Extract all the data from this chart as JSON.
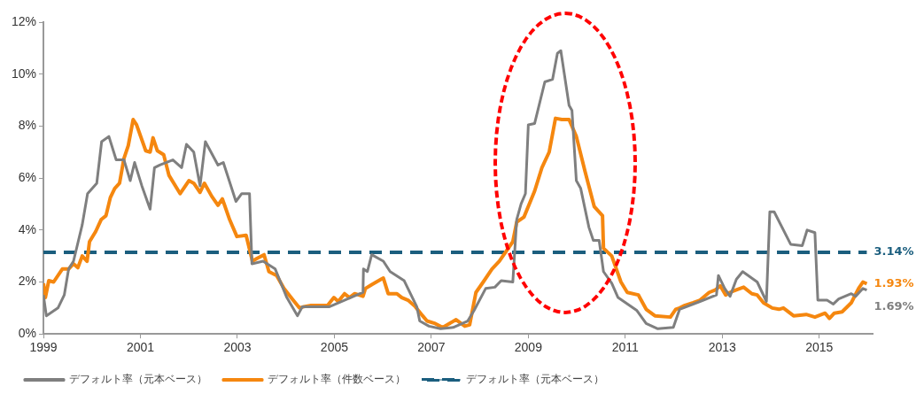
{
  "chart_data": {
    "type": "line",
    "legend": "bottom",
    "line_style": "solid",
    "marker": "none",
    "xlim": [
      1999,
      2016.1
    ],
    "xticks": [
      1999,
      2001,
      2003,
      2005,
      2007,
      2009,
      2011,
      2013,
      2015
    ],
    "ylim": [
      0,
      12
    ],
    "yticks": [
      {
        "value": 0,
        "label": "0%"
      },
      {
        "value": 2,
        "label": "2%"
      },
      {
        "value": 4,
        "label": "4%"
      },
      {
        "value": 6,
        "label": "6%"
      },
      {
        "value": 8,
        "label": "8%"
      },
      {
        "value": 10,
        "label": "10%"
      },
      {
        "value": 12,
        "label": "12%"
      }
    ],
    "series": [
      {
        "name": "デフォルト率（元本ベース）",
        "color": "#7f7f7f",
        "x": [
          1999.0,
          1999.06,
          1999.3,
          1999.43,
          1999.52,
          1999.62,
          1999.8,
          1999.91,
          2000.1,
          2000.2,
          2000.35,
          2000.5,
          2000.66,
          2000.79,
          2000.88,
          2001.03,
          2001.2,
          2001.29,
          2001.4,
          2001.67,
          2001.85,
          2001.95,
          2002.1,
          2002.23,
          2002.34,
          2002.6,
          2002.71,
          2002.97,
          2003.09,
          2003.25,
          2003.3,
          2003.53,
          2003.78,
          2004.02,
          2004.24,
          2004.34,
          2004.9,
          2005.59,
          2005.6,
          2005.68,
          2005.77,
          2006.01,
          2006.15,
          2006.44,
          2006.7,
          2006.76,
          2006.95,
          2007.19,
          2007.45,
          2007.75,
          2007.88,
          2008.12,
          2008.31,
          2008.44,
          2008.68,
          2008.76,
          2008.85,
          2008.94,
          2009.0,
          2009.13,
          2009.34,
          2009.5,
          2009.6,
          2009.67,
          2009.84,
          2009.9,
          2009.99,
          2010.08,
          2010.25,
          2010.34,
          2010.46,
          2010.55,
          2010.72,
          2010.85,
          2011.24,
          2011.43,
          2011.67,
          2011.99,
          2012.12,
          2012.54,
          2012.88,
          2012.92,
          2013.05,
          2013.16,
          2013.29,
          2013.42,
          2013.72,
          2013.91,
          2013.98,
          2014.07,
          2014.41,
          2014.65,
          2014.75,
          2014.91,
          2014.97,
          2015.16,
          2015.29,
          2015.4,
          2015.66,
          2015.75,
          2015.9,
          2015.98
        ],
        "values": [
          1.5,
          0.7,
          1.0,
          1.5,
          2.5,
          2.8,
          4.2,
          5.4,
          5.8,
          7.4,
          7.6,
          6.7,
          6.7,
          5.9,
          6.6,
          5.7,
          4.8,
          6.4,
          6.5,
          6.7,
          6.4,
          7.3,
          7.0,
          5.7,
          7.4,
          6.5,
          6.6,
          5.1,
          5.4,
          5.4,
          2.7,
          2.8,
          2.5,
          1.4,
          0.7,
          1.05,
          1.05,
          1.6,
          2.5,
          2.4,
          3.05,
          2.8,
          2.4,
          2.05,
          1.05,
          0.5,
          0.3,
          0.2,
          0.25,
          0.5,
          0.9,
          1.75,
          1.8,
          2.05,
          2.0,
          4.4,
          5.0,
          5.4,
          8.05,
          8.1,
          9.7,
          9.8,
          10.8,
          10.9,
          8.8,
          8.6,
          5.9,
          5.6,
          4.1,
          3.6,
          3.6,
          2.4,
          1.95,
          1.4,
          0.9,
          0.4,
          0.2,
          0.25,
          0.95,
          1.25,
          1.5,
          2.25,
          1.75,
          1.45,
          2.1,
          2.4,
          2.0,
          1.25,
          4.7,
          4.7,
          3.45,
          3.4,
          4.0,
          3.9,
          1.3,
          1.3,
          1.15,
          1.35,
          1.55,
          1.45,
          1.75,
          1.69
        ],
        "value_labels": [
          null,
          null,
          null,
          null,
          null,
          null,
          null,
          null,
          null,
          null,
          null,
          null,
          null,
          null,
          null,
          null,
          null,
          null,
          null,
          null,
          null,
          null,
          null,
          null,
          null,
          null,
          null,
          null,
          null,
          null,
          null,
          null,
          null,
          null,
          null,
          null,
          null,
          null,
          null,
          null,
          null,
          null,
          null,
          null,
          null,
          null,
          null,
          null,
          null,
          null,
          null,
          null,
          null,
          null,
          null,
          null,
          null,
          null,
          null,
          null,
          null,
          null,
          null,
          null,
          null,
          null,
          null,
          null,
          null,
          null,
          null,
          null,
          null,
          null,
          null,
          null,
          null,
          null,
          null,
          null,
          null,
          null,
          null,
          null,
          null,
          null,
          null,
          null,
          null,
          null,
          null,
          null,
          null,
          null,
          null,
          null,
          null,
          null,
          null,
          null,
          null,
          "1.69%"
        ]
      },
      {
        "name": "デフォルト率（件数ベース）",
        "color": "#f5870f",
        "x": [
          1999.0,
          1999.04,
          1999.11,
          1999.21,
          1999.39,
          1999.52,
          1999.62,
          1999.71,
          1999.8,
          1999.9,
          1999.95,
          2000.08,
          2000.19,
          2000.29,
          2000.38,
          2000.47,
          2000.57,
          2000.66,
          2000.75,
          2000.85,
          2000.92,
          2001.11,
          2001.2,
          2001.26,
          2001.35,
          2001.48,
          2001.59,
          2001.82,
          2002.0,
          2002.1,
          2002.23,
          2002.32,
          2002.47,
          2002.6,
          2002.69,
          2002.84,
          2002.99,
          2003.18,
          2003.31,
          2003.4,
          2003.55,
          2003.65,
          2003.81,
          2003.96,
          2004.15,
          2004.28,
          2004.37,
          2004.52,
          2004.86,
          2004.99,
          2005.08,
          2005.21,
          2005.31,
          2005.42,
          2005.59,
          2005.64,
          2005.77,
          2005.96,
          2006.01,
          2006.11,
          2006.29,
          2006.39,
          2006.52,
          2006.67,
          2006.82,
          2006.91,
          2007.08,
          2007.23,
          2007.51,
          2007.69,
          2007.79,
          2007.92,
          2008.07,
          2008.25,
          2008.4,
          2008.68,
          2008.76,
          2008.91,
          2009.13,
          2009.28,
          2009.43,
          2009.56,
          2009.69,
          2009.84,
          2009.99,
          2010.17,
          2010.36,
          2010.53,
          2010.55,
          2010.72,
          2010.91,
          2011.04,
          2011.27,
          2011.43,
          2011.61,
          2011.93,
          2012.04,
          2012.12,
          2012.23,
          2012.4,
          2012.54,
          2012.73,
          2012.86,
          2012.96,
          2013.07,
          2013.16,
          2013.29,
          2013.44,
          2013.61,
          2013.72,
          2013.85,
          2014.03,
          2014.17,
          2014.26,
          2014.47,
          2014.73,
          2014.91,
          2015.12,
          2015.21,
          2015.31,
          2015.47,
          2015.66,
          2015.81,
          2015.9,
          2015.98
        ],
        "values": [
          1.95,
          1.4,
          2.05,
          2.0,
          2.5,
          2.5,
          2.7,
          2.55,
          3.0,
          2.8,
          3.55,
          3.95,
          4.4,
          4.55,
          5.25,
          5.6,
          5.8,
          6.75,
          7.25,
          8.25,
          8.05,
          7.05,
          7.0,
          7.55,
          7.05,
          6.9,
          6.1,
          5.4,
          5.9,
          5.8,
          5.45,
          5.8,
          5.3,
          4.95,
          5.2,
          4.4,
          3.75,
          3.8,
          2.8,
          2.9,
          3.05,
          2.4,
          2.25,
          1.75,
          1.3,
          1.0,
          1.05,
          1.1,
          1.1,
          1.4,
          1.25,
          1.55,
          1.4,
          1.55,
          1.45,
          1.75,
          1.9,
          2.1,
          2.15,
          1.55,
          1.55,
          1.4,
          1.3,
          1.05,
          0.7,
          0.5,
          0.4,
          0.25,
          0.55,
          0.3,
          0.35,
          1.6,
          2.0,
          2.5,
          2.8,
          3.55,
          4.3,
          4.5,
          5.5,
          6.4,
          7.0,
          8.3,
          8.25,
          8.25,
          7.6,
          6.25,
          4.9,
          4.55,
          3.3,
          3.0,
          2.0,
          1.6,
          1.5,
          0.95,
          0.7,
          0.65,
          0.95,
          1.0,
          1.1,
          1.2,
          1.3,
          1.6,
          1.7,
          1.85,
          1.5,
          1.6,
          1.7,
          1.8,
          1.55,
          1.5,
          1.2,
          1.0,
          0.95,
          1.0,
          0.7,
          0.75,
          0.65,
          0.8,
          0.6,
          0.8,
          0.85,
          1.2,
          1.75,
          2.0,
          1.93
        ],
        "value_labels": [
          null,
          null,
          null,
          null,
          null,
          null,
          null,
          null,
          null,
          null,
          null,
          null,
          null,
          null,
          null,
          null,
          null,
          null,
          null,
          null,
          null,
          null,
          null,
          null,
          null,
          null,
          null,
          null,
          null,
          null,
          null,
          null,
          null,
          null,
          null,
          null,
          null,
          null,
          null,
          null,
          null,
          null,
          null,
          null,
          null,
          null,
          null,
          null,
          null,
          null,
          null,
          null,
          null,
          null,
          null,
          null,
          null,
          null,
          null,
          null,
          null,
          null,
          null,
          null,
          null,
          null,
          null,
          null,
          null,
          null,
          null,
          null,
          null,
          null,
          null,
          null,
          null,
          null,
          null,
          null,
          null,
          null,
          null,
          null,
          null,
          null,
          null,
          null,
          null,
          null,
          null,
          null,
          null,
          null,
          null,
          null,
          null,
          null,
          null,
          null,
          null,
          null,
          null,
          null,
          null,
          null,
          null,
          null,
          null,
          null,
          null,
          null,
          null,
          null,
          null,
          null,
          null,
          null,
          null,
          null,
          null,
          null,
          null,
          null,
          "1.93%"
        ]
      },
      {
        "name": "デフォルト率（元本ベース）",
        "color": "#1b5e7e",
        "line_style": "dashed",
        "x": [
          1999.0,
          2015.98
        ],
        "values": [
          3.14,
          3.14
        ],
        "value_labels": [
          null,
          "3.14%"
        ]
      }
    ]
  }
}
